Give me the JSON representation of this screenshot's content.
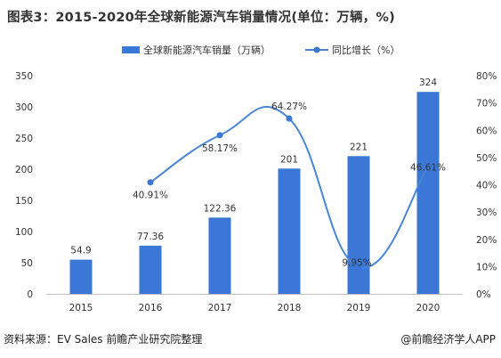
{
  "page": {
    "title": "图表3：2015-2020年全球新能源汽车销量情况(单位：万辆，%)",
    "source": "资料来源：EV Sales 前瞻产业研究院整理",
    "brand": "@前瞻经济学人APP"
  },
  "colors": {
    "bar": "#3a77d6",
    "line": "#4a86d8",
    "marker": "#3a77d6"
  },
  "chart_data": {
    "type": "bar",
    "categories": [
      "2015",
      "2016",
      "2017",
      "2018",
      "2019",
      "2020"
    ],
    "series": [
      {
        "name": "全球新能源汽车销量（万辆）",
        "type": "bar",
        "axis": "left",
        "values": [
          54.9,
          77.36,
          122.36,
          201,
          221,
          324
        ],
        "labels": [
          "54.9",
          "77.36",
          "122.36",
          "201",
          "221",
          "324"
        ]
      },
      {
        "name": "同比增长（%）",
        "type": "line",
        "axis": "right",
        "smooth": true,
        "values": [
          null,
          40.91,
          58.17,
          64.27,
          9.95,
          46.61
        ],
        "labels": [
          "",
          "40.91%",
          "58.17%",
          "64.27%",
          "9.95%",
          "46.61%"
        ]
      }
    ],
    "y_left": {
      "min": 0,
      "max": 350,
      "ticks": [
        "0",
        "50",
        "100",
        "150",
        "200",
        "250",
        "300",
        "350"
      ]
    },
    "y_right": {
      "min": 0,
      "max": 80,
      "ticks": [
        "0%",
        "10%",
        "20%",
        "30%",
        "40%",
        "50%",
        "60%",
        "70%",
        "80%"
      ]
    },
    "legend_position": "top-center",
    "grid": false
  }
}
